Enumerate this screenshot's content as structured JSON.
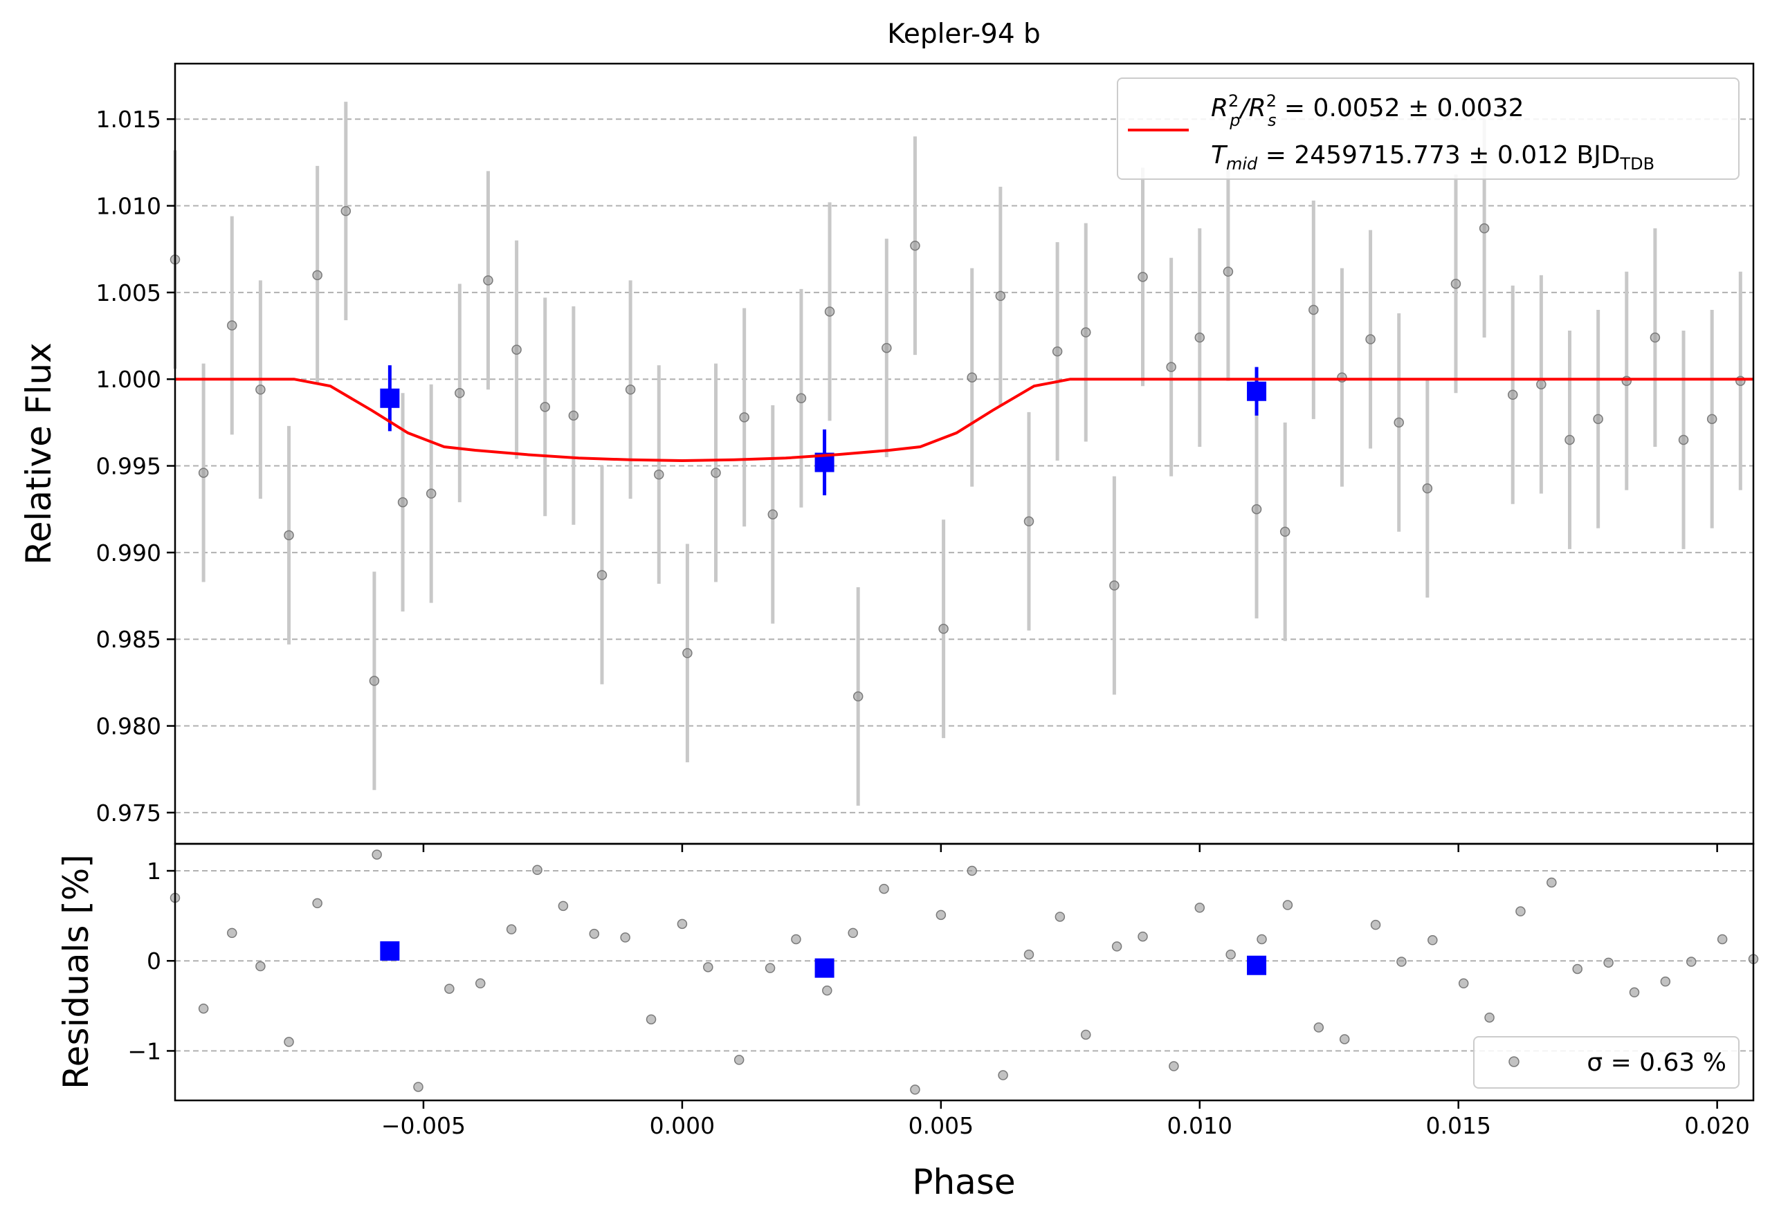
{
  "chart_data": [
    {
      "type": "scatter",
      "panel": "main",
      "title": "Kepler-94 b",
      "ylabel": "Relative Flux",
      "xlim": [
        -0.0098,
        0.0207
      ],
      "ylim": [
        0.9732,
        1.0182
      ],
      "yticks": [
        0.975,
        0.98,
        0.985,
        0.99,
        0.995,
        1.0,
        1.005,
        1.01,
        1.015
      ],
      "ytick_labels": [
        "0.975",
        "0.980",
        "0.985",
        "0.990",
        "0.995",
        "1.000",
        "1.005",
        "1.010",
        "1.015"
      ],
      "grid": "y-dashed",
      "legend": {
        "placement": "top-right",
        "entry_1": {
          "base": "R",
          "sup1": "2",
          "sub1": "p",
          "mid": "/R",
          "sup2": "2",
          "sub2": "s",
          "value": " = 0.0052 ± 0.0032"
        },
        "entry_2": {
          "base": "T",
          "sub": "mid",
          "value": " = 2459715.773 ± 0.012 BJD",
          "unit_sub": "TDB"
        }
      },
      "series": [
        {
          "kind": "data",
          "color": "#999999",
          "x": [
            -0.0098,
            -0.00925,
            -0.0087,
            -0.00815,
            -0.0076,
            -0.00705,
            -0.0065,
            -0.00595,
            -0.0054,
            -0.00485,
            -0.0043,
            -0.00375,
            -0.0032,
            -0.00265,
            -0.0021,
            -0.00155,
            -0.001,
            -0.00045,
            0.0001,
            0.00065,
            0.0012,
            0.00175,
            0.0023,
            0.00285,
            0.0034,
            0.00395,
            0.0045,
            0.00505,
            0.0056,
            0.00615,
            0.0067,
            0.00725,
            0.0078,
            0.00835,
            0.0089,
            0.00945,
            0.01,
            0.01055,
            0.0111,
            0.01165,
            0.0122,
            0.01275,
            0.0133,
            0.01385,
            0.0144,
            0.01495,
            0.0155,
            0.01605,
            0.0166,
            0.01715,
            0.0177,
            0.01825,
            0.0188,
            0.01935,
            0.0199,
            0.02045,
            0.021
          ],
          "y": [
            1.0069,
            0.9946,
            1.0031,
            0.9994,
            0.991,
            1.006,
            1.0097,
            0.9826,
            0.9929,
            0.9934,
            0.9992,
            1.0057,
            1.0017,
            0.9984,
            0.9979,
            0.9887,
            0.9994,
            0.9945,
            0.9842,
            0.9946,
            0.9978,
            0.9922,
            0.9989,
            1.0039,
            0.9817,
            1.0018,
            1.0077,
            0.9856,
            1.0001,
            1.0048,
            0.9918,
            1.0016,
            1.0027,
            0.9881,
            1.0059,
            1.0007,
            1.0024,
            1.0062,
            0.9925,
            0.9912,
            1.004,
            1.0001,
            1.0023,
            0.9975,
            0.9937,
            1.0055,
            1.0087,
            0.9991,
            0.9997,
            0.9965,
            0.9977,
            0.9999,
            1.0024,
            0.9965,
            0.9977,
            0.9999,
            1.0024
          ],
          "yerr": 0.0063
        },
        {
          "kind": "binned",
          "color": "#0000ff",
          "x": [
            -0.00565,
            0.00275,
            0.0111
          ],
          "y": [
            0.9989,
            0.9952,
            0.9993
          ],
          "yerr": [
            0.0019,
            0.0019,
            0.0014
          ]
        },
        {
          "kind": "model",
          "color": "#ff0000",
          "x": [
            -0.0098,
            -0.0075,
            -0.0068,
            -0.006,
            -0.0053,
            -0.0046,
            -0.004,
            -0.003,
            -0.002,
            -0.001,
            0.0,
            0.001,
            0.002,
            0.003,
            0.004,
            0.0046,
            0.0053,
            0.006,
            0.0068,
            0.0075,
            0.0207
          ],
          "y": [
            1.0,
            1.0,
            0.9996,
            0.9982,
            0.9969,
            0.9961,
            0.9959,
            0.99565,
            0.99545,
            0.99535,
            0.9953,
            0.99535,
            0.99545,
            0.99565,
            0.9959,
            0.9961,
            0.9969,
            0.9982,
            0.9996,
            1.0,
            1.0
          ]
        }
      ]
    },
    {
      "type": "scatter",
      "panel": "residuals",
      "xlabel": "Phase",
      "ylabel": "Residuals [%]",
      "xlim": [
        -0.0098,
        0.0207
      ],
      "ylim": [
        -1.55,
        1.3
      ],
      "xticks": [
        -0.005,
        0.0,
        0.005,
        0.01,
        0.015,
        0.02
      ],
      "xtick_labels": [
        "−0.005",
        "0.000",
        "0.005",
        "0.010",
        "0.015",
        "0.020"
      ],
      "yticks": [
        -1,
        0,
        1
      ],
      "ytick_labels": [
        "−1",
        "0",
        "1"
      ],
      "grid": "y-dashed",
      "legend": {
        "placement": "bottom-right",
        "text": "σ = 0.63 %"
      },
      "series": [
        {
          "kind": "data",
          "color": "#999999",
          "x": [
            -0.0098,
            -0.00925,
            -0.0087,
            -0.00815,
            -0.0076,
            -0.00705,
            -0.0059,
            -0.0051,
            -0.0045,
            -0.0039,
            -0.0033,
            -0.0028,
            -0.0023,
            -0.0017,
            -0.0011,
            -0.0006,
            0.0,
            0.0005,
            0.0011,
            0.0017,
            0.0022,
            0.0028,
            0.0033,
            0.0039,
            0.0045,
            0.005,
            0.0056,
            0.0062,
            0.0067,
            0.0073,
            0.0078,
            0.0084,
            0.0089,
            0.0095,
            0.01,
            0.0106,
            0.0112,
            0.0117,
            0.0123,
            0.0128,
            0.0134,
            0.0139,
            0.0145,
            0.0151,
            0.0156,
            0.0162,
            0.0168,
            0.0173,
            0.0179,
            0.0184,
            0.019,
            0.0195,
            0.0201,
            0.0207
          ],
          "y": [
            0.7,
            -0.53,
            0.31,
            -0.06,
            -0.9,
            0.64,
            1.18,
            -1.4,
            -0.31,
            -0.25,
            0.35,
            1.01,
            0.61,
            0.3,
            0.26,
            -0.65,
            0.41,
            -0.07,
            -1.1,
            -0.08,
            0.24,
            -0.33,
            0.31,
            0.8,
            -1.43,
            0.51,
            1.0,
            -1.27,
            0.07,
            0.49,
            -0.82,
            0.16,
            0.27,
            -1.17,
            0.59,
            0.07,
            0.24,
            0.62,
            -0.74,
            -0.87,
            0.4,
            -0.01,
            0.23,
            -0.25,
            -0.63,
            0.55,
            0.87,
            -0.09,
            -0.02,
            -0.35,
            -0.23,
            -0.01,
            0.24,
            0.02
          ]
        },
        {
          "kind": "binned",
          "color": "#0000ff",
          "x": [
            -0.00565,
            0.00275,
            0.0111
          ],
          "y": [
            0.11,
            -0.08,
            -0.05
          ]
        }
      ]
    }
  ]
}
